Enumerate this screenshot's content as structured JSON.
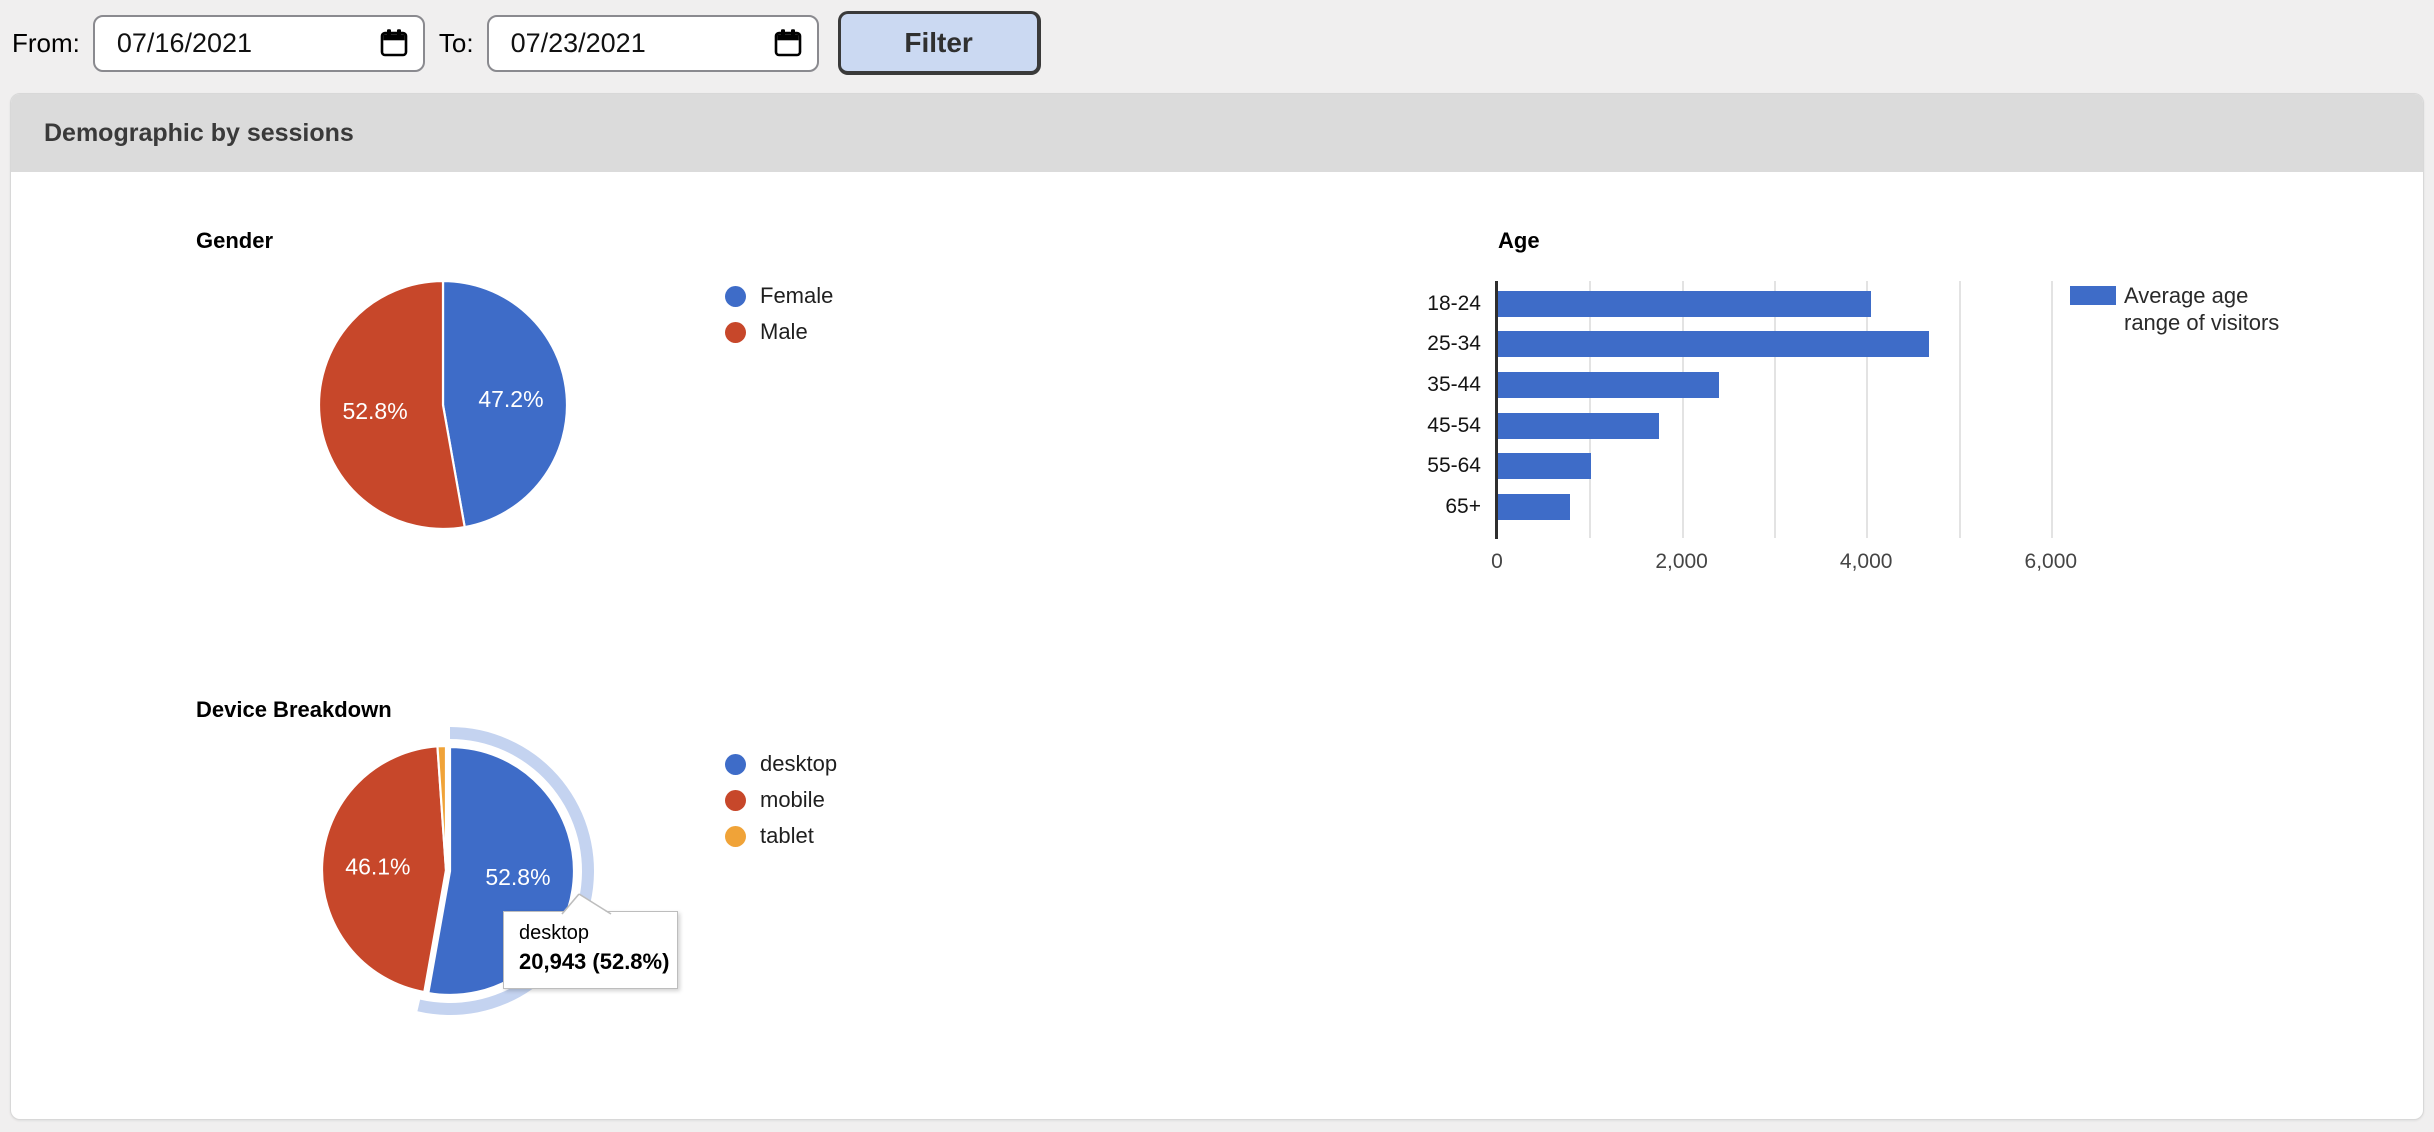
{
  "filters": {
    "from_label": "From:",
    "from_value": "07/16/2021",
    "to_label": "To:",
    "to_value": "07/23/2021",
    "filter_button": "Filter"
  },
  "panel": {
    "title": "Demographic by sessions"
  },
  "colors": {
    "blue": "#3E6CC8",
    "red": "#C7472A",
    "orange": "#F0A338",
    "selection_halo": "#C4D3F0",
    "gridline": "#E3E3E3"
  },
  "chart_data": [
    {
      "type": "pie",
      "title": "Gender",
      "legend_position": "right",
      "slices": [
        {
          "label": "Female",
          "pct": 47.2,
          "display": "47.2%",
          "color": "#3E6CC8"
        },
        {
          "label": "Male",
          "pct": 52.8,
          "display": "52.8%",
          "color": "#C7472A"
        }
      ]
    },
    {
      "type": "bar",
      "title": "Age",
      "orientation": "horizontal",
      "categories": [
        "18-24",
        "25-34",
        "35-44",
        "45-54",
        "55-64",
        "65+"
      ],
      "values": [
        4050,
        4680,
        2400,
        1750,
        1020,
        790
      ],
      "xlim": [
        0,
        6200
      ],
      "x_ticks": [
        {
          "value": 0,
          "label": "0"
        },
        {
          "value": 2000,
          "label": "2,000"
        },
        {
          "value": 4000,
          "label": "4,000"
        },
        {
          "value": 6000,
          "label": "6,000"
        }
      ],
      "gridline_step": 1000,
      "bar_color": "#3E6CC8",
      "legend_lines": [
        "Average age",
        "range of visitors"
      ]
    },
    {
      "type": "pie",
      "title": "Device Breakdown",
      "legend_position": "right",
      "slices": [
        {
          "label": "desktop",
          "pct": 52.8,
          "display": "52.8%",
          "color": "#3E6CC8",
          "selected": true
        },
        {
          "label": "mobile",
          "pct": 46.1,
          "display": "46.1%",
          "color": "#C7472A"
        },
        {
          "label": "tablet",
          "pct": 1.1,
          "display": "",
          "color": "#F0A338"
        }
      ],
      "tooltip": {
        "title": "desktop",
        "value": "20,943 (52.8%)"
      }
    }
  ]
}
